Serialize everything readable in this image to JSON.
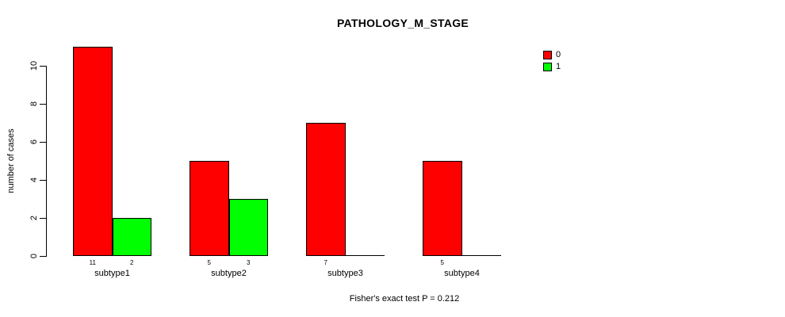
{
  "chart_data": {
    "type": "bar",
    "title": "PATHOLOGY_M_STAGE",
    "ylabel": "number of cases",
    "xlabel": "",
    "categories": [
      "subtype1",
      "subtype2",
      "subtype3",
      "subtype4"
    ],
    "series": [
      {
        "name": "0",
        "color": "#ff0000",
        "values": [
          11,
          5,
          7,
          5
        ]
      },
      {
        "name": "1",
        "color": "#00ff00",
        "values": [
          2,
          3,
          0,
          0
        ]
      }
    ],
    "bar_count_labels": {
      "subtype1": [
        11,
        2
      ],
      "subtype2": [
        5,
        3
      ],
      "subtype3": [
        7,
        null
      ],
      "subtype4": [
        5,
        null
      ]
    },
    "yticks": [
      0,
      2,
      4,
      6,
      8,
      10
    ],
    "ylim": [
      0,
      11
    ],
    "grid": false,
    "legend_position": "top-right",
    "annotation": "Fisher's exact test P = 0.212",
    "colors": {
      "axis": "#000000",
      "text": "#000000",
      "background": "#ffffff"
    }
  }
}
